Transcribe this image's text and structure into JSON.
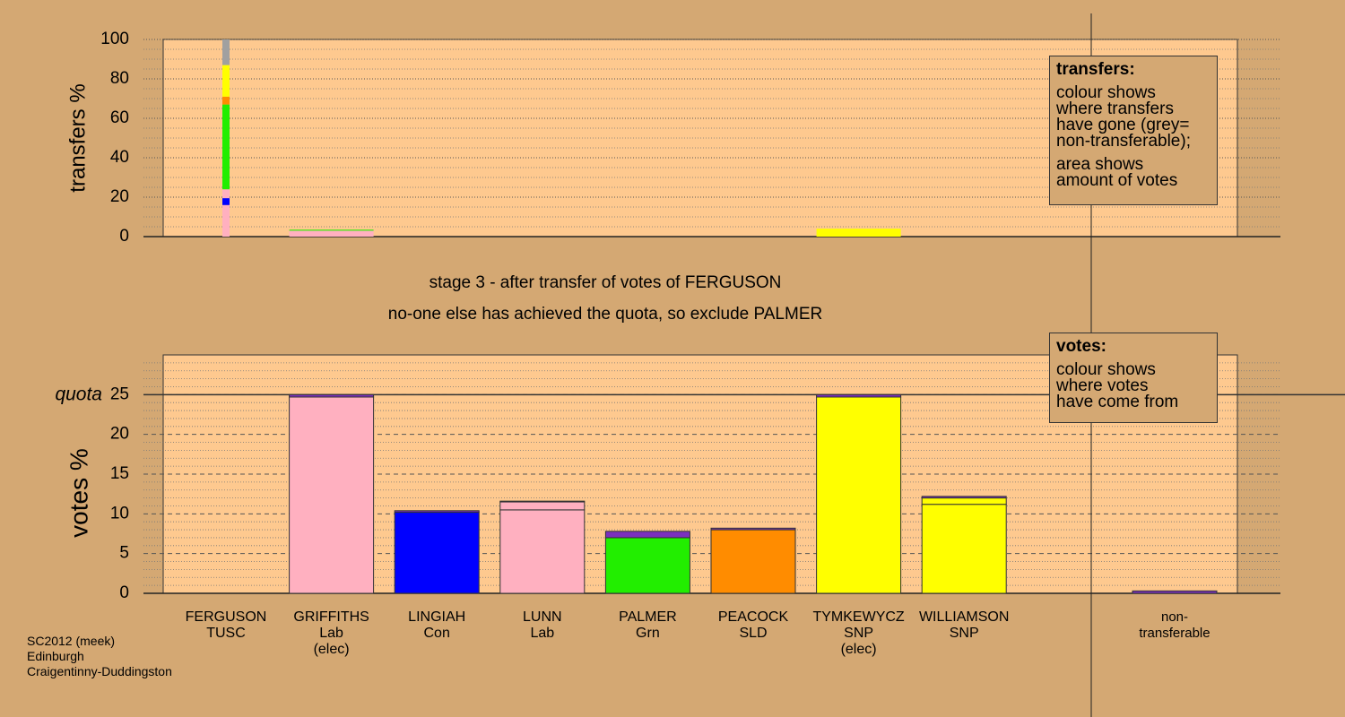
{
  "chart_data": [
    {
      "type": "bar",
      "stacked": true,
      "ylabel": "transfers %",
      "ylim": [
        0,
        100
      ],
      "yticks": [
        0,
        20,
        40,
        60,
        80,
        100
      ],
      "grid": true,
      "series": [
        {
          "color": "#ffb0c0",
          "values": [
            16,
            3,
            null,
            null,
            null,
            null,
            null,
            null,
            null
          ]
        },
        {
          "color": "#0000ff",
          "values": [
            3.5,
            null,
            null,
            null,
            null,
            null,
            null,
            null,
            null
          ]
        },
        {
          "color": "#ffb0c0",
          "values": [
            4.5,
            null,
            null,
            null,
            null,
            null,
            null,
            null,
            null
          ]
        },
        {
          "color": "#22ee00",
          "values": [
            43,
            0.5,
            null,
            null,
            null,
            null,
            null,
            null,
            null
          ]
        },
        {
          "color": "#ff8c00",
          "values": [
            4,
            null,
            null,
            null,
            null,
            null,
            null,
            null,
            null
          ]
        },
        {
          "color": "#ffff00",
          "values": [
            16,
            null,
            null,
            null,
            null,
            null,
            4,
            null,
            null
          ]
        },
        {
          "color": "#a0a0a0",
          "values": [
            13,
            null,
            null,
            null,
            null,
            null,
            null,
            null,
            null
          ]
        }
      ]
    },
    {
      "type": "bar",
      "stacked": true,
      "ylabel": "votes %",
      "ylim": [
        0,
        30
      ],
      "yticks": [
        0,
        5,
        10,
        15,
        20,
        25
      ],
      "grid": true,
      "quota": 25,
      "quota_label": "quota",
      "categories": [
        "FERGUSON\nTUSC",
        "GRIFFITHS\nLab\n(elec)",
        "LINGIAH\nCon",
        "LUNN\nLab",
        "PALMER\nGrn",
        "PEACOCK\nSLD",
        "TYMKEWYCZ\nSNP\n(elec)",
        "WILLIAMSON\nSNP",
        "non-\ntransferable"
      ],
      "series": [
        {
          "colors": [
            "#ffffff",
            "#ffb0c0",
            "#0000ff",
            "#ffb0c0",
            "#22ee00",
            "#ff8c00",
            "#ffff00",
            "#ffff00",
            "#7b2fbe"
          ],
          "values": [
            null,
            24.7,
            10.2,
            10.5,
            7,
            8,
            24.7,
            11.2,
            null
          ]
        },
        {
          "colors": [
            "#ffffff",
            "#ffffff",
            "#ffffff",
            "#ffb0c0",
            "#ffffff",
            "#ffffff",
            "#ffffff",
            "#ffff00",
            "#ffffff"
          ],
          "values": [
            null,
            null,
            null,
            1,
            null,
            null,
            null,
            0.8,
            null
          ]
        },
        {
          "colors": [
            "#7b2fbe",
            "#7b2fbe",
            "#7b2fbe",
            "#7b2fbe",
            "#7b2fbe",
            "#7b2fbe",
            "#7b2fbe",
            "#7b2fbe",
            "#7b2fbe"
          ],
          "values": [
            null,
            0.3,
            0.2,
            0.1,
            0.8,
            0.2,
            0.3,
            0.2,
            0.3
          ]
        }
      ]
    }
  ],
  "stage_title": "stage 3 - after transfer of votes of FERGUSON",
  "stage_note": "no-one else has achieved the quota, so exclude PALMER",
  "transfers_legend": {
    "title": "transfers:",
    "line1": "colour shows\nwhere transfers\nhave gone (grey=\nnon-transferable);",
    "line2": "area shows\namount of votes"
  },
  "votes_legend": {
    "title": "votes:",
    "line1": "colour shows\nwhere votes\nhave come from"
  },
  "footnote": "SC2012 (meek)\nEdinburgh\nCraigentinny-Duddingston"
}
